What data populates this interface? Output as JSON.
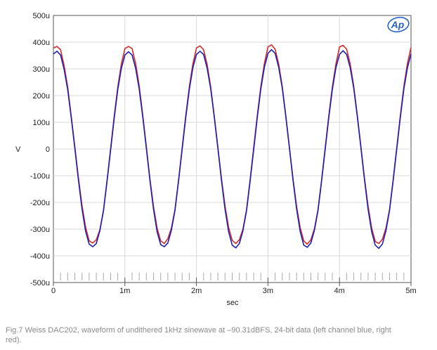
{
  "chart_data": {
    "type": "line",
    "xlabel": "sec",
    "ylabel": "V",
    "xlim": [
      0,
      0.005
    ],
    "ylim": [
      -0.0005,
      0.0005
    ],
    "x_ticks": [
      {
        "value": 0,
        "label": "0"
      },
      {
        "value": 0.001,
        "label": "1m"
      },
      {
        "value": 0.002,
        "label": "2m"
      },
      {
        "value": 0.003,
        "label": "3m"
      },
      {
        "value": 0.004,
        "label": "4m"
      },
      {
        "value": 0.005,
        "label": "5m"
      }
    ],
    "y_ticks": [
      {
        "value": 0.0005,
        "label": "500u"
      },
      {
        "value": 0.0004,
        "label": "400u"
      },
      {
        "value": 0.0003,
        "label": "300u"
      },
      {
        "value": 0.0002,
        "label": "200u"
      },
      {
        "value": 0.0001,
        "label": "100u"
      },
      {
        "value": 0,
        "label": "0"
      },
      {
        "value": -0.0001,
        "label": "-100u"
      },
      {
        "value": -0.0002,
        "label": "-200u"
      },
      {
        "value": -0.0003,
        "label": "-300u"
      },
      {
        "value": -0.0004,
        "label": "-400u"
      },
      {
        "value": -0.0005,
        "label": "-500u"
      }
    ],
    "grid": true,
    "series": [
      {
        "color": "#d42a2a",
        "x": [
          0,
          5e-05,
          0.0001,
          0.00015,
          0.0002,
          0.00025,
          0.0003,
          0.00035,
          0.0004,
          0.00045,
          0.0005,
          0.00055,
          0.0006,
          0.00065,
          0.0007,
          0.00075,
          0.0008,
          0.00085,
          0.0009,
          0.00095,
          0.001,
          0.00105,
          0.0011,
          0.00115,
          0.0012,
          0.00125,
          0.0013,
          0.00135,
          0.0014,
          0.00145,
          0.0015,
          0.00155,
          0.0016,
          0.00165,
          0.0017,
          0.00175,
          0.0018,
          0.00185,
          0.0019,
          0.00195,
          0.002,
          0.00205,
          0.0021,
          0.00215,
          0.0022,
          0.00225,
          0.0023,
          0.00235,
          0.0024,
          0.00245,
          0.0025,
          0.00255,
          0.0026,
          0.00265,
          0.0027,
          0.00275,
          0.0028,
          0.00285,
          0.0029,
          0.00295,
          0.003,
          0.00305,
          0.0031,
          0.00315,
          0.0032,
          0.00325,
          0.0033,
          0.00335,
          0.0034,
          0.00345,
          0.0035,
          0.00355,
          0.0036,
          0.00365,
          0.0037,
          0.00375,
          0.0038,
          0.00385,
          0.0039,
          0.00395,
          0.004,
          0.00405,
          0.0041,
          0.00415,
          0.0042,
          0.00425,
          0.0043,
          0.00435,
          0.0044,
          0.00445,
          0.0045,
          0.00455,
          0.0046,
          0.00465,
          0.0047,
          0.00475,
          0.0048,
          0.00485,
          0.0049,
          0.00495,
          0.005
        ],
        "y": [
          0.000378,
          0.000384,
          0.000372,
          0.000312,
          0.000232,
          0.000122,
          8e-06,
          -0.000108,
          -0.000212,
          -0.000292,
          -0.000344,
          -0.000352,
          -0.00034,
          -0.000302,
          -0.00023,
          -0.000118,
          2e-06,
          0.000122,
          0.000232,
          0.000318,
          0.000376,
          0.000384,
          0.000376,
          0.00032,
          0.000236,
          0.000126,
          8e-06,
          -0.000112,
          -0.000216,
          -0.000296,
          -0.000344,
          -0.000354,
          -0.000336,
          -0.000296,
          -0.000226,
          -0.000116,
          4e-06,
          0.000124,
          0.000232,
          0.000318,
          0.000378,
          0.000386,
          0.000372,
          0.000316,
          0.000232,
          0.000122,
          6e-06,
          -0.00011,
          -0.000214,
          -0.000294,
          -0.000342,
          -0.000354,
          -0.00034,
          -0.0003,
          -0.000228,
          -0.000116,
          4e-06,
          0.000124,
          0.000234,
          0.00032,
          0.000382,
          0.00039,
          0.000374,
          0.000318,
          0.000234,
          0.000124,
          6e-06,
          -0.00011,
          -0.000214,
          -0.000294,
          -0.000344,
          -0.000356,
          -0.00034,
          -0.000298,
          -0.000226,
          -0.000116,
          4e-06,
          0.000124,
          0.000232,
          0.000318,
          0.000382,
          0.000388,
          0.000374,
          0.000318,
          0.000234,
          0.000124,
          8e-06,
          -0.00011,
          -0.000214,
          -0.000296,
          -0.000346,
          -0.000354,
          -0.000338,
          -0.000296,
          -0.000226,
          -0.000116,
          4e-06,
          0.000124,
          0.000234,
          0.00032,
          0.00038
        ]
      },
      {
        "color": "#1f1fb4",
        "x": [
          0,
          5e-05,
          0.0001,
          0.00015,
          0.0002,
          0.00025,
          0.0003,
          0.00035,
          0.0004,
          0.00045,
          0.0005,
          0.00055,
          0.0006,
          0.00065,
          0.0007,
          0.00075,
          0.0008,
          0.00085,
          0.0009,
          0.00095,
          0.001,
          0.00105,
          0.0011,
          0.00115,
          0.0012,
          0.00125,
          0.0013,
          0.00135,
          0.0014,
          0.00145,
          0.0015,
          0.00155,
          0.0016,
          0.00165,
          0.0017,
          0.00175,
          0.0018,
          0.00185,
          0.0019,
          0.00195,
          0.002,
          0.00205,
          0.0021,
          0.00215,
          0.0022,
          0.00225,
          0.0023,
          0.00235,
          0.0024,
          0.00245,
          0.0025,
          0.00255,
          0.0026,
          0.00265,
          0.0027,
          0.00275,
          0.0028,
          0.00285,
          0.0029,
          0.00295,
          0.003,
          0.00305,
          0.0031,
          0.00315,
          0.0032,
          0.00325,
          0.0033,
          0.00335,
          0.0034,
          0.00345,
          0.0035,
          0.00355,
          0.0036,
          0.00365,
          0.0037,
          0.00375,
          0.0038,
          0.00385,
          0.0039,
          0.00395,
          0.004,
          0.00405,
          0.0041,
          0.00415,
          0.0042,
          0.00425,
          0.0043,
          0.00435,
          0.0044,
          0.00445,
          0.0045,
          0.00455,
          0.0046,
          0.00465,
          0.0047,
          0.00475,
          0.0048,
          0.00485,
          0.0049,
          0.00495,
          0.005
        ],
        "y": [
          0.000356,
          0.000366,
          0.000352,
          0.000298,
          0.000222,
          0.000116,
          2e-06,
          -0.000116,
          -0.000224,
          -0.000308,
          -0.000356,
          -0.000366,
          -0.000354,
          -0.000306,
          -0.000232,
          -0.000122,
          -4e-06,
          0.000114,
          0.000222,
          0.000302,
          0.000352,
          0.000364,
          0.000352,
          0.000302,
          0.000224,
          0.000118,
          2e-06,
          -0.000118,
          -0.000226,
          -0.00031,
          -0.000358,
          -0.000366,
          -0.000352,
          -0.000304,
          -0.00023,
          -0.00012,
          -2e-06,
          0.000116,
          0.000222,
          0.000304,
          0.000354,
          0.000366,
          0.000354,
          0.000302,
          0.000224,
          0.000118,
          2e-06,
          -0.000118,
          -0.000226,
          -0.00031,
          -0.00036,
          -0.00037,
          -0.000354,
          -0.000306,
          -0.000232,
          -0.000122,
          -4e-06,
          0.000116,
          0.000224,
          0.000306,
          0.000358,
          0.000372,
          0.000358,
          0.000306,
          0.000228,
          0.00012,
          4e-06,
          -0.000116,
          -0.000224,
          -0.000308,
          -0.00036,
          -0.000368,
          -0.000352,
          -0.000304,
          -0.00023,
          -0.00012,
          -2e-06,
          0.000116,
          0.000222,
          0.000304,
          0.000354,
          0.000368,
          0.000354,
          0.000304,
          0.000226,
          0.00012,
          4e-06,
          -0.000116,
          -0.000226,
          -0.00031,
          -0.00036,
          -0.000372,
          -0.000356,
          -0.000306,
          -0.00023,
          -0.00012,
          -2e-06,
          0.000116,
          0.000224,
          0.000304,
          0.000356
        ]
      }
    ]
  },
  "caption": "Fig.7 Weiss DAC202, waveform of undithered 1kHz sinewave at –90.31dBFS, 24-bit data (left channel blue, right red).",
  "logo": {
    "text": "Ap",
    "icon": "ap-logo-icon",
    "color": "#2a62c7"
  }
}
